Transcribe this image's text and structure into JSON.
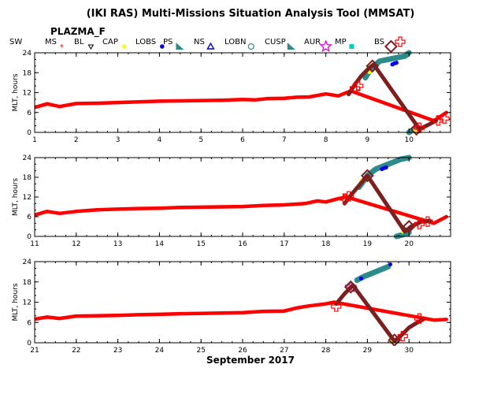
{
  "title": "(IKI RAS) Multi-Missions Situation Analysis Tool (MMSAT)",
  "spacecraft": "PLAZMA_F",
  "legend": [
    {
      "label": "SW",
      "color": "#000000",
      "marker": "none"
    },
    {
      "label": "MS",
      "color": "#ff0000",
      "marker": "small-star"
    },
    {
      "label": "BL",
      "color": "#000000",
      "marker": "small-triangle"
    },
    {
      "label": "CAP",
      "color": "#ffff00",
      "marker": "dot"
    },
    {
      "label": "LOBS",
      "color": "#0000ff",
      "marker": "dot"
    },
    {
      "label": "PS",
      "color": "#2e8b8b",
      "marker": "filled-triangle"
    },
    {
      "label": "NS",
      "color": "#0000cc",
      "marker": "triangle"
    },
    {
      "label": "LOBN",
      "color": "#2e8b8b",
      "marker": "circle"
    },
    {
      "label": "CUSP",
      "color": "#2e8b8b",
      "marker": "filled-triangle"
    },
    {
      "label": "AUR",
      "color": "#cc00cc",
      "marker": "star"
    },
    {
      "label": "MP",
      "color": "#00cccc",
      "marker": "square"
    },
    {
      "label": "BS",
      "color": "#7b1f1f",
      "marker": "diamond"
    },
    {
      "label": "",
      "color": "#ff0000",
      "marker": "plus"
    }
  ],
  "chart_data": {
    "type": "scatter",
    "xlabel": "September 2017",
    "ylabel": "MLT, hours",
    "ylim": [
      0,
      24
    ],
    "yticks": [
      0,
      6,
      12,
      18,
      24
    ],
    "panels": [
      {
        "xlim": [
          1,
          11
        ],
        "xticks": [
          1,
          2,
          3,
          4,
          5,
          6,
          7,
          8,
          9,
          10
        ],
        "series": [
          {
            "name": "MS",
            "color": "#ff0000",
            "x": [
              1.0,
              1.3,
              1.6,
              2.0,
              2.5,
              3.0,
              3.5,
              4.0,
              4.5,
              5.0,
              5.5,
              6.0,
              6.3,
              6.6,
              7.0,
              7.3,
              7.6,
              8.0,
              8.3,
              8.6,
              10.6,
              10.9
            ],
            "y": [
              7.5,
              8.6,
              7.8,
              8.7,
              8.8,
              9.0,
              9.2,
              9.4,
              9.5,
              9.6,
              9.7,
              9.9,
              9.8,
              10.2,
              10.3,
              10.6,
              10.7,
              11.6,
              11.0,
              12.5,
              3.5,
              6.0
            ]
          },
          {
            "name": "CUSP",
            "color": "#2e8b8b",
            "x": [
              8.95,
              9.1,
              9.3,
              9.5,
              9.7,
              9.9,
              10.0
            ],
            "y": [
              16.5,
              19.5,
              21.5,
              22.0,
              22.5,
              23.0,
              24.0
            ]
          },
          {
            "name": "CUSP",
            "color": "#2e8b8b",
            "x": [
              10.0,
              10.1,
              10.2
            ],
            "y": [
              0.0,
              0.8,
              1.4
            ]
          },
          {
            "name": "LOBS",
            "color": "#0000ff",
            "x": [
              9.6,
              9.65,
              9.7
            ],
            "y": [
              20.5,
              20.8,
              21.0
            ]
          },
          {
            "name": "CAP",
            "color": "#ffff00",
            "x": [
              9.05,
              10.15
            ],
            "y": [
              18.2,
              0.6
            ]
          },
          {
            "name": "BS",
            "color": "#7b1f1f",
            "x": [
              8.55,
              8.7,
              8.85,
              9.05,
              9.15,
              10.25,
              10.45,
              10.65
            ],
            "y": [
              11.5,
              14.5,
              17.0,
              19.5,
              20.5,
              1.0,
              2.2,
              3.5
            ]
          },
          {
            "name": "BS-marker",
            "color": "#7b1f1f",
            "x": [
              9.12,
              10.18
            ],
            "y": [
              20.0,
              1.0
            ]
          },
          {
            "name": "plus",
            "color": "#ff0000",
            "x": [
              8.7,
              8.78,
              10.25,
              10.7,
              10.85
            ],
            "y": [
              13.3,
              14.0,
              1.4,
              3.6,
              4.2
            ]
          }
        ]
      },
      {
        "xlim": [
          11,
          21
        ],
        "xticks": [
          11,
          12,
          13,
          14,
          15,
          16,
          17,
          18,
          19,
          20
        ],
        "series": [
          {
            "name": "MS",
            "color": "#ff0000",
            "x": [
              11.0,
              11.3,
              11.6,
              12.0,
              12.5,
              13.0,
              13.5,
              14.0,
              14.5,
              15.0,
              15.5,
              16.0,
              16.5,
              17.0,
              17.5,
              17.8,
              18.0,
              18.3,
              18.5,
              20.6,
              20.9
            ],
            "y": [
              6.5,
              7.6,
              7.0,
              7.6,
              8.1,
              8.3,
              8.5,
              8.6,
              8.8,
              8.9,
              9.0,
              9.1,
              9.4,
              9.6,
              10.0,
              10.8,
              10.5,
              11.5,
              12.0,
              4.0,
              6.0
            ]
          },
          {
            "name": "CUSP",
            "color": "#2e8b8b",
            "x": [
              18.8,
              19.0,
              19.2,
              19.4,
              19.6,
              19.8,
              20.0
            ],
            "y": [
              15.0,
              18.5,
              20.5,
              21.5,
              22.5,
              23.5,
              24.0
            ]
          },
          {
            "name": "CUSP",
            "color": "#2e8b8b",
            "x": [
              19.7,
              19.85,
              20.0
            ],
            "y": [
              0.0,
              0.5,
              1.2
            ]
          },
          {
            "name": "LOBS",
            "color": "#0000ff",
            "x": [
              19.35,
              19.4,
              19.45
            ],
            "y": [
              20.5,
              20.8,
              21.0
            ]
          },
          {
            "name": "CAP",
            "color": "#ffff00",
            "x": [
              18.85,
              19.85
            ],
            "y": [
              17.0,
              1.5
            ]
          },
          {
            "name": "BS",
            "color": "#7b1f1f",
            "x": [
              18.45,
              18.6,
              18.8,
              19.0,
              19.9,
              20.05,
              20.3,
              20.5
            ],
            "y": [
              10.0,
              12.5,
              15.5,
              18.5,
              1.5,
              3.0,
              4.5,
              4.8
            ]
          },
          {
            "name": "BS-marker",
            "color": "#7b1f1f",
            "x": [
              19.0,
              20.0
            ],
            "y": [
              18.5,
              3.0
            ]
          },
          {
            "name": "plus",
            "color": "#ff0000",
            "x": [
              18.45,
              18.55,
              20.25,
              20.45
            ],
            "y": [
              11.5,
              12.2,
              3.8,
              4.5
            ]
          }
        ]
      },
      {
        "xlim": [
          21,
          31
        ],
        "xticks": [
          21,
          22,
          23,
          24,
          25,
          26,
          27,
          28,
          29,
          30
        ],
        "series": [
          {
            "name": "MS",
            "color": "#ff0000",
            "x": [
              21.0,
              21.3,
              21.6,
              22.0,
              22.5,
              23.0,
              23.5,
              24.0,
              24.5,
              25.0,
              25.5,
              26.0,
              26.5,
              27.0,
              27.3,
              27.6,
              28.0,
              28.2,
              30.6,
              30.9
            ],
            "y": [
              7.0,
              7.6,
              7.2,
              7.9,
              8.0,
              8.1,
              8.3,
              8.4,
              8.6,
              8.7,
              8.8,
              8.9,
              9.3,
              9.4,
              10.3,
              10.9,
              11.5,
              12.0,
              6.7,
              6.9
            ]
          },
          {
            "name": "CUSP",
            "color": "#2e8b8b",
            "x": [
              28.75,
              28.9,
              29.1,
              29.3,
              29.5
            ],
            "y": [
              18.5,
              19.5,
              20.5,
              21.5,
              22.5
            ]
          },
          {
            "name": "LOBS",
            "color": "#0000ff",
            "x": [
              28.85,
              29.55
            ],
            "y": [
              19.0,
              23.2
            ]
          },
          {
            "name": "CAP",
            "color": "#ffff00",
            "x": [
              28.7,
              29.6
            ],
            "y": [
              16.0,
              0.5
            ]
          },
          {
            "name": "AUR",
            "color": "#cc00cc",
            "x": [
              28.6
            ],
            "y": [
              16.5
            ]
          },
          {
            "name": "BS",
            "color": "#7b1f1f",
            "x": [
              28.25,
              28.45,
              28.65,
              29.65,
              29.8,
              30.0,
              30.2,
              30.35
            ],
            "y": [
              11.5,
              14.5,
              17.0,
              0.5,
              2.0,
              4.5,
              6.0,
              7.0
            ]
          },
          {
            "name": "BS-marker",
            "color": "#7b1f1f",
            "x": [
              28.6,
              29.65
            ],
            "y": [
              16.5,
              0.8
            ]
          },
          {
            "name": "plus",
            "color": "#ff0000",
            "x": [
              28.25,
              29.85,
              30.25
            ],
            "y": [
              10.7,
              2.0,
              7.2
            ]
          }
        ]
      }
    ]
  }
}
